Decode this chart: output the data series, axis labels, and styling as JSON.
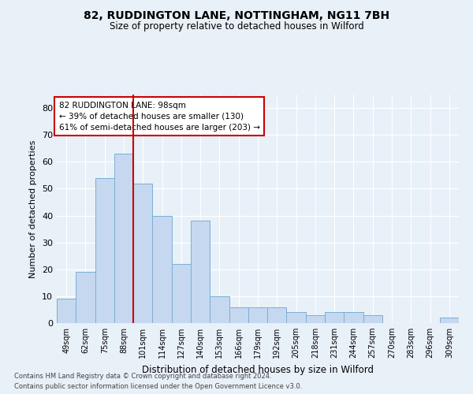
{
  "title1": "82, RUDDINGTON LANE, NOTTINGHAM, NG11 7BH",
  "title2": "Size of property relative to detached houses in Wilford",
  "xlabel": "Distribution of detached houses by size in Wilford",
  "ylabel": "Number of detached properties",
  "footer1": "Contains HM Land Registry data © Crown copyright and database right 2024.",
  "footer2": "Contains public sector information licensed under the Open Government Licence v3.0.",
  "annotation_line1": "82 RUDDINGTON LANE: 98sqm",
  "annotation_line2": "← 39% of detached houses are smaller (130)",
  "annotation_line3": "61% of semi-detached houses are larger (203) →",
  "bar_labels": [
    "49sqm",
    "62sqm",
    "75sqm",
    "88sqm",
    "101sqm",
    "114sqm",
    "127sqm",
    "140sqm",
    "153sqm",
    "166sqm",
    "179sqm",
    "192sqm",
    "205sqm",
    "218sqm",
    "231sqm",
    "244sqm",
    "257sqm",
    "270sqm",
    "283sqm",
    "296sqm",
    "309sqm"
  ],
  "bar_values": [
    9,
    19,
    54,
    63,
    52,
    40,
    22,
    38,
    10,
    6,
    6,
    6,
    4,
    3,
    4,
    4,
    3,
    0,
    0,
    0,
    2
  ],
  "bar_color": "#c5d8f0",
  "bar_edge_color": "#7bafd4",
  "vline_color": "#cc0000",
  "ylim": [
    0,
    85
  ],
  "yticks": [
    0,
    10,
    20,
    30,
    40,
    50,
    60,
    70,
    80
  ],
  "bg_color": "#e8f0f8",
  "grid_color": "#ffffff",
  "annotation_box_color": "#ffffff",
  "annotation_box_edge": "#cc0000"
}
